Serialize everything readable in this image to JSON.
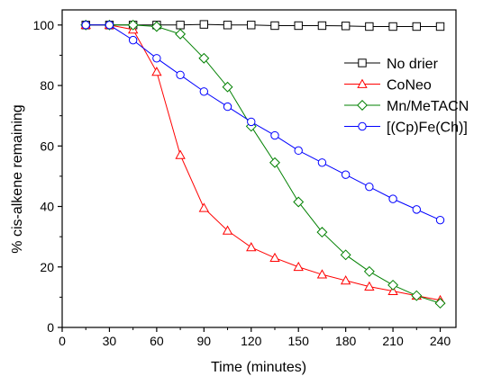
{
  "chart_data": {
    "type": "line",
    "title": "",
    "xlabel": "Time (minutes)",
    "ylabel": "% cis-alkene remaining",
    "xlim": [
      0,
      250
    ],
    "ylim": [
      0,
      105
    ],
    "xticks": [
      0,
      30,
      60,
      90,
      120,
      150,
      180,
      210,
      240
    ],
    "yticks": [
      0,
      20,
      40,
      60,
      80,
      100
    ],
    "grid": false,
    "legend_position": "top-right",
    "series": [
      {
        "name": "No drier",
        "color": "#000000",
        "marker": "square",
        "x": [
          15,
          30,
          45,
          60,
          75,
          90,
          105,
          120,
          135,
          150,
          165,
          180,
          195,
          210,
          225,
          240
        ],
        "y": [
          100,
          100,
          100,
          100,
          100,
          100.2,
          100,
          100,
          99.8,
          99.8,
          99.8,
          99.7,
          99.5,
          99.5,
          99.5,
          99.5
        ]
      },
      {
        "name": "CoNeo",
        "color": "#ff0000",
        "marker": "triangle",
        "x": [
          15,
          30,
          45,
          60,
          75,
          90,
          105,
          120,
          135,
          150,
          165,
          180,
          195,
          210,
          225,
          240
        ],
        "y": [
          100,
          100,
          98.5,
          84.5,
          57,
          39.5,
          32,
          26.5,
          23,
          20,
          17.5,
          15.5,
          13.5,
          12,
          10.5,
          9
        ]
      },
      {
        "name": "Mn/MeTACN",
        "color": "#008000",
        "marker": "diamond",
        "x": [
          15,
          30,
          45,
          60,
          75,
          90,
          105,
          120,
          135,
          150,
          165,
          180,
          195,
          210,
          225,
          240
        ],
        "y": [
          100,
          100,
          100,
          99.5,
          97,
          89,
          79.5,
          66.5,
          54.5,
          41.5,
          31.5,
          24,
          18.5,
          14,
          10.5,
          8
        ]
      },
      {
        "name": "[(Cp)Fe(Ch)]",
        "color": "#0000ff",
        "marker": "circle",
        "x": [
          15,
          30,
          45,
          60,
          75,
          90,
          105,
          120,
          135,
          150,
          165,
          180,
          195,
          210,
          225,
          240
        ],
        "y": [
          100,
          100,
          95,
          89,
          83.5,
          78,
          73,
          68,
          63.5,
          58.5,
          54.5,
          50.5,
          46.5,
          42.5,
          39,
          35.5
        ]
      }
    ]
  }
}
